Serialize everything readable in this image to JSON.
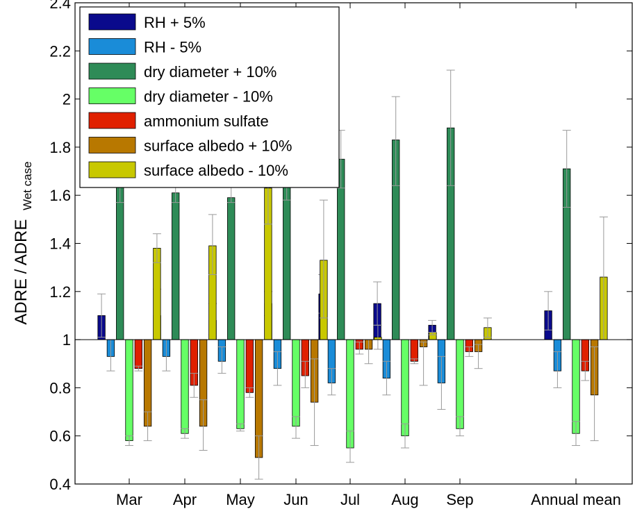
{
  "chart_data": {
    "type": "bar",
    "title": "",
    "xlabel": "",
    "ylabel": "ADRE / ADRE",
    "ylabel_subscript": "Wet case",
    "ylim": [
      0.4,
      2.4
    ],
    "yticks": [
      0.4,
      0.6,
      0.8,
      1,
      1.2,
      1.4,
      1.6,
      1.8,
      2,
      2.2,
      2.4
    ],
    "ytick_labels": [
      "0.4",
      "0.6",
      "0.8",
      "1",
      "1.2",
      "1.4",
      "1.6",
      "1.8",
      "2",
      "2.2",
      "2.4"
    ],
    "baseline": 1,
    "categories": [
      "Mar",
      "Apr",
      "May",
      "Jun",
      "Jul",
      "Aug",
      "Sep",
      "Annual mean"
    ],
    "legend_position": "top-left",
    "grid": false,
    "error_bar_color": "#999999",
    "series": [
      {
        "name": "RH + 5%",
        "color": "#0a0a8c",
        "values": [
          1.1,
          1.1,
          1.08,
          1.15,
          1.19,
          1.15,
          1.06,
          1.12
        ],
        "err_low": [
          1.01,
          1.0,
          1.02,
          1.1,
          1.11,
          1.06,
          1.03,
          1.04
        ],
        "err_high": [
          1.19,
          1.21,
          1.15,
          1.2,
          1.27,
          1.24,
          1.08,
          1.2
        ]
      },
      {
        "name": "RH - 5%",
        "color": "#1a8cd8",
        "values": [
          0.93,
          0.93,
          0.91,
          0.88,
          0.82,
          0.84,
          0.82,
          0.87
        ],
        "err_low": [
          0.87,
          0.87,
          0.86,
          0.81,
          0.77,
          0.77,
          0.71,
          0.8
        ],
        "err_high": [
          1.0,
          1.0,
          0.97,
          0.95,
          0.88,
          0.91,
          0.93,
          0.95
        ]
      },
      {
        "name": "dry diameter + 10%",
        "color": "#2e8b57",
        "values": [
          1.66,
          1.61,
          1.59,
          1.68,
          1.75,
          1.83,
          1.88,
          1.71
        ],
        "err_low": [
          1.57,
          1.57,
          1.57,
          1.58,
          1.63,
          1.64,
          1.64,
          1.55
        ],
        "err_high": [
          1.75,
          1.65,
          1.65,
          1.79,
          1.87,
          2.01,
          2.12,
          1.87
        ]
      },
      {
        "name": "dry diameter - 10%",
        "color": "#66ff66",
        "values": [
          0.58,
          0.61,
          0.63,
          0.64,
          0.55,
          0.6,
          0.63,
          0.61
        ],
        "err_low": [
          0.56,
          0.59,
          0.62,
          0.59,
          0.49,
          0.55,
          0.6,
          0.56
        ],
        "err_high": [
          0.6,
          0.63,
          0.65,
          0.68,
          0.62,
          0.65,
          0.68,
          0.66
        ]
      },
      {
        "name": "ammonium sulfate",
        "color": "#e02000",
        "values": [
          0.88,
          0.81,
          0.78,
          0.85,
          0.96,
          0.91,
          0.95,
          0.87
        ],
        "err_low": [
          0.87,
          0.76,
          0.76,
          0.8,
          0.94,
          0.9,
          0.93,
          0.83
        ],
        "err_high": [
          0.89,
          0.86,
          0.8,
          0.91,
          0.99,
          0.92,
          0.97,
          0.91
        ]
      },
      {
        "name": "surface albedo + 10%",
        "color": "#b87800",
        "values": [
          0.64,
          0.64,
          0.51,
          0.74,
          0.96,
          0.97,
          0.95,
          0.77
        ],
        "err_low": [
          0.58,
          0.54,
          0.42,
          0.56,
          0.9,
          0.81,
          0.88,
          0.58
        ],
        "err_high": [
          0.7,
          0.75,
          0.6,
          0.92,
          1.0,
          0.99,
          0.98,
          0.97
        ]
      },
      {
        "name": "surface albedo - 10%",
        "color": "#c8c800",
        "values": [
          1.38,
          1.39,
          1.63,
          1.33,
          1.01,
          1.03,
          1.05,
          1.26
        ],
        "err_low": [
          1.32,
          1.27,
          1.48,
          1.09,
          0.96,
          1.02,
          1.01,
          1.0
        ],
        "err_high": [
          1.44,
          1.52,
          1.78,
          1.58,
          1.06,
          1.03,
          1.09,
          1.51
        ]
      }
    ]
  }
}
